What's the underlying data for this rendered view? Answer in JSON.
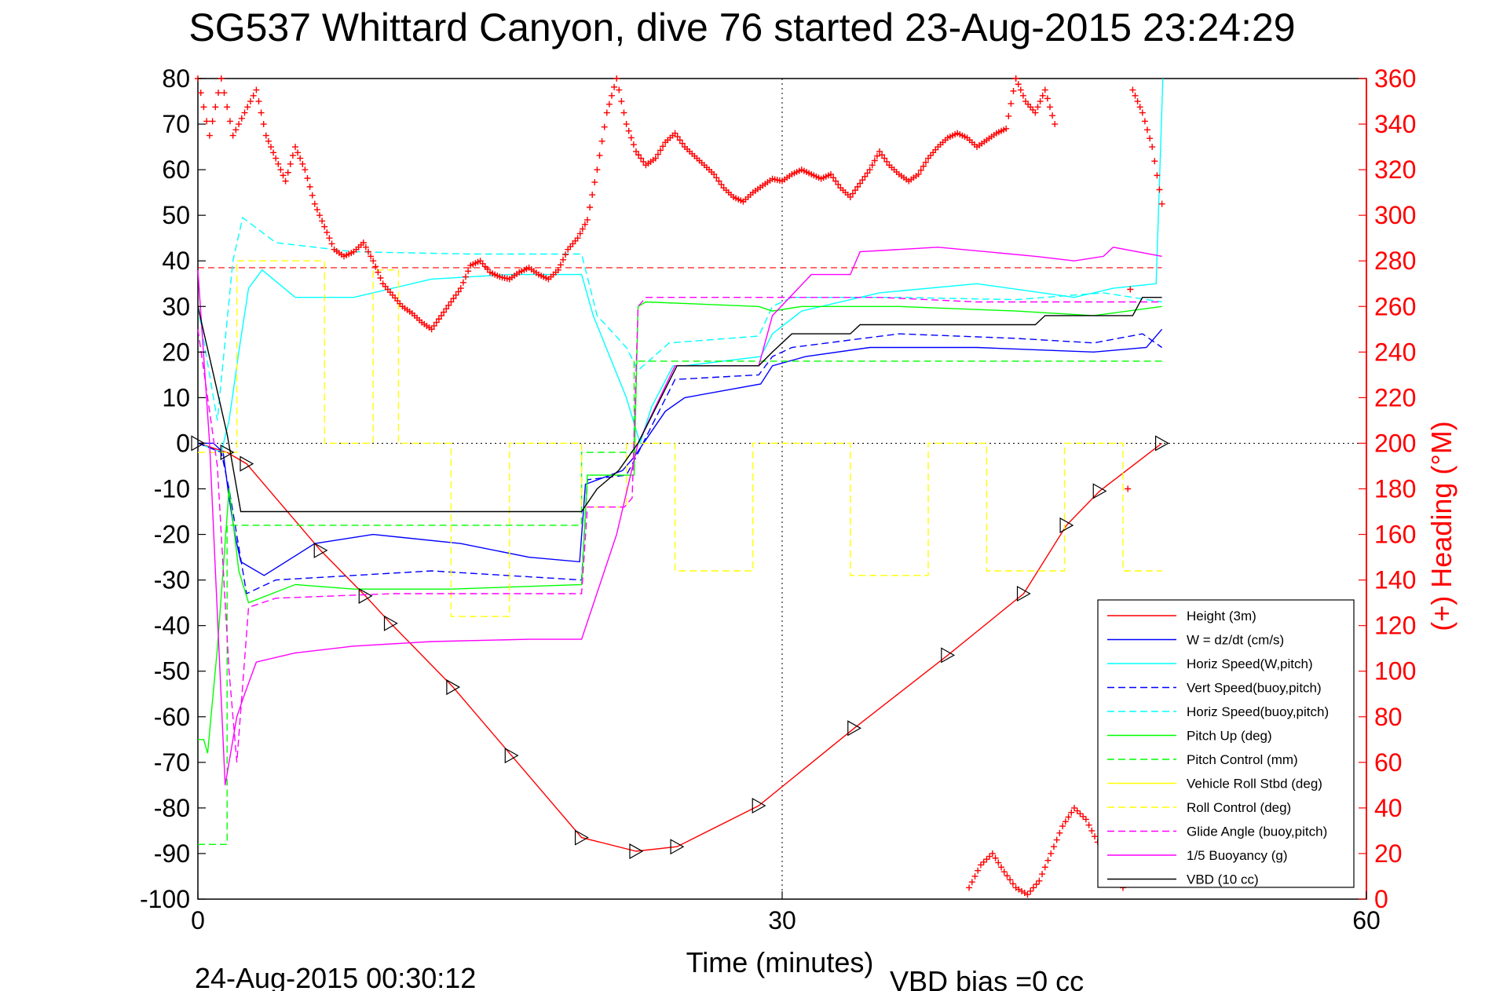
{
  "chart_data": {
    "type": "line",
    "title": "SG537 Whittard Canyon, dive 76 started 23-Aug-2015 23:24:29",
    "xlabel": "Time (minutes)",
    "ylabel_right": "(+) Heading (°M)",
    "footer_left": "24-Aug-2015 00:30:12",
    "footer_right": "VBD bias =0 cc",
    "xlim": [
      0,
      60
    ],
    "ylim": [
      -100,
      80
    ],
    "ylim_right": [
      0,
      360
    ],
    "xticks": [
      "0",
      "30",
      "60"
    ],
    "yticks": [
      "80",
      "70",
      "60",
      "50",
      "40",
      "30",
      "20",
      "10",
      "0",
      "-10",
      "-20",
      "-30",
      "-40",
      "-50",
      "-60",
      "-70",
      "-80",
      "-90",
      "-100"
    ],
    "yticks_right": [
      "360",
      "340",
      "320",
      "300",
      "280",
      "260",
      "240",
      "220",
      "200",
      "180",
      "160",
      "140",
      "120",
      "100",
      "80",
      "60",
      "40",
      "20",
      "0"
    ],
    "grid": "dotted, at x=30 and y=0",
    "legend_position": "lower-right",
    "heading_reference_line": 277,
    "series": [
      {
        "name": "Height (3m)",
        "color": "#ff0000",
        "dash": "solid",
        "x": [
          0,
          1.5,
          2.5,
          6.3,
          8.6,
          9.9,
          13.1,
          16.1,
          19.7,
          22.5,
          24.6,
          28.8,
          33.7,
          38.5,
          42.4,
          44.6,
          46.3,
          49.5
        ],
        "y": [
          0,
          -2,
          -4.5,
          -23.5,
          -33.5,
          -39.5,
          -53.5,
          -68.5,
          -86.5,
          -89.5,
          -88.5,
          -79.5,
          -62.5,
          -46.5,
          -33,
          -18,
          -10.5,
          0
        ]
      },
      {
        "name": "W = dz/dt (cm/s)",
        "color": "#0000ff",
        "dash": "solid",
        "x": [
          0,
          0.8,
          1.3,
          1.6,
          1.9,
          2.2,
          3.4,
          6.0,
          9.0,
          13.5,
          17.0,
          19.6,
          19.9,
          21.8,
          22.4,
          24.0,
          25.0,
          28.9,
          29.5,
          31.2,
          34.5,
          40.0,
          46.0,
          48.7,
          49.5
        ],
        "y": [
          0,
          0,
          -2,
          -12,
          -20,
          -26,
          -29,
          -22,
          -20,
          -22,
          -25,
          -26,
          -9,
          -6,
          -3,
          7,
          10,
          13,
          17,
          19,
          21,
          21,
          20,
          21,
          25
        ]
      },
      {
        "name": "Horiz Speed(W,pitch)",
        "color": "#00ffff",
        "dash": "solid",
        "x": [
          0,
          1.2,
          1.6,
          2.1,
          2.6,
          3.3,
          5.0,
          8.0,
          12.0,
          16.0,
          19.7,
          20.3,
          22.0,
          22.7,
          23.3,
          24.4,
          25.0,
          28.9,
          29.5,
          31.0,
          35.0,
          40.0,
          45.0,
          47.0,
          49.2,
          49.55
        ],
        "y": [
          0,
          -2,
          5,
          20,
          34,
          38,
          32,
          32,
          36,
          37,
          37,
          28,
          10,
          0,
          8,
          17,
          17,
          19,
          24,
          29,
          33,
          35,
          32,
          34,
          35,
          80
        ]
      },
      {
        "name": "Vert Speed(buoy,pitch)",
        "color": "#0000ff",
        "dash": "dashed",
        "x": [
          0,
          1.2,
          1.6,
          2.5,
          4.0,
          12.0,
          19.7,
          20.0,
          22.0,
          22.5,
          24.5,
          28.8,
          29.5,
          30.5,
          36.0,
          42.0,
          46.0,
          48.5,
          49.5
        ],
        "y": [
          0,
          -2,
          -10,
          -33,
          -30,
          -28,
          -30,
          -8,
          -7,
          -3,
          14,
          15,
          19,
          21,
          24,
          23,
          22,
          24,
          21
        ]
      },
      {
        "name": "Horiz Speed(buoy,pitch)",
        "color": "#00ffff",
        "dash": "dashed",
        "x": [
          0,
          1.0,
          1.8,
          2.3,
          4.0,
          8.0,
          14.0,
          19.7,
          20.5,
          22.0,
          22.6,
          24.2,
          28.8,
          29.5,
          30.5,
          36.0,
          42.0,
          46.5,
          49.5
        ],
        "y": [
          30,
          5,
          40,
          49.5,
          44,
          42,
          41.5,
          41.5,
          28,
          21,
          16,
          22,
          23.5,
          30,
          32,
          32,
          31.5,
          33,
          31
        ]
      },
      {
        "name": "Pitch Up (deg)",
        "color": "#00ff00",
        "dash": "solid",
        "x": [
          0,
          0.3,
          0.5,
          1.0,
          1.6,
          2.1,
          2.6,
          5.0,
          8.0,
          13.0,
          19.7,
          20.0,
          22.4,
          22.6,
          23.0,
          28.8,
          29.5,
          31.0,
          36.0,
          42.0,
          46.0,
          49.5
        ],
        "y": [
          -65,
          -65,
          -68,
          -45,
          -10,
          -28,
          -35,
          -31,
          -32,
          -32,
          -31,
          -7,
          -7,
          30,
          31,
          30,
          29,
          30,
          30,
          29,
          28,
          30
        ]
      },
      {
        "name": "Pitch Control (mm)",
        "color": "#00ff00",
        "dash": "dashed",
        "x": [
          0,
          1.5,
          1.5,
          19.7,
          19.7,
          22.4,
          22.4,
          25.0,
          25.0,
          49.5
        ],
        "y": [
          -88,
          -88,
          -18,
          -18,
          -2,
          -2,
          18,
          18,
          18,
          18
        ]
      },
      {
        "name": "Vehicle Roll Stbd (deg)",
        "color": "#ffff00",
        "dash": "solid",
        "x": [],
        "y": []
      },
      {
        "name": "Roll Control (deg)",
        "color": "#ffff00",
        "dash": "dashed",
        "x": [
          0,
          2.0,
          2.0,
          6.5,
          6.5,
          9.0,
          9.0,
          10.3,
          10.3,
          13.0,
          13.0,
          16.0,
          16.0,
          19.7,
          19.7,
          22.0,
          22.0,
          24.5,
          24.5,
          28.5,
          28.5,
          33.5,
          33.5,
          37.5,
          37.5,
          40.5,
          40.5,
          44.5,
          44.5,
          47.5,
          47.5,
          49.5
        ],
        "y": [
          -2,
          -2,
          40,
          40,
          0,
          0,
          38,
          38,
          0,
          0,
          -38,
          -38,
          0,
          0,
          -14,
          -14,
          0,
          0,
          -28,
          -28,
          0,
          0,
          -29,
          -29,
          0,
          0,
          -28,
          -28,
          0,
          0,
          -28,
          -28
        ]
      },
      {
        "name": "Glide Angle (buoy,pitch)",
        "color": "#ff00ff",
        "dash": "dashed",
        "x": [
          0,
          1.0,
          1.6,
          2.0,
          2.6,
          4.0,
          10.0,
          19.7,
          20.0,
          21.9,
          22.3,
          22.6,
          23.0,
          28.8,
          35.0,
          40.0,
          45.0,
          49.5
        ],
        "y": [
          25,
          -5,
          -50,
          -70,
          -36,
          -34,
          -33,
          -33,
          -14,
          -14,
          -12,
          30,
          32,
          32,
          32,
          31,
          31,
          31
        ]
      },
      {
        "name": "1/5 Buoyancy (g)",
        "color": "#ff00ff",
        "dash": "solid",
        "x": [
          0,
          0.6,
          1.4,
          2.0,
          2.4,
          3.0,
          5.0,
          8.0,
          12.0,
          17.0,
          19.7,
          21.5,
          22.6,
          24.5,
          28.8,
          29.5,
          31.5,
          33.5,
          34.0,
          38.0,
          43.0,
          45.0,
          46.5,
          47.0,
          49.5
        ],
        "y": [
          38,
          0,
          -75,
          -60,
          -55,
          -48,
          -46,
          -44.5,
          -43.5,
          -43,
          -43,
          -20,
          0,
          17,
          17,
          28,
          37,
          37,
          42,
          43,
          41,
          40,
          41,
          43,
          41
        ]
      },
      {
        "name": "VBD (10 cc)",
        "color": "#000000",
        "dash": "solid",
        "x": [
          0,
          1.5,
          2.2,
          19.7,
          20.5,
          21.6,
          22.6,
          24.6,
          28.8,
          29.5,
          30.5,
          33.5,
          34.0,
          43.0,
          43.5,
          48.0,
          48.5,
          49.5
        ],
        "y": [
          30,
          2,
          -15,
          -15,
          -10,
          -6,
          0,
          17,
          17,
          20,
          24,
          24,
          26,
          26,
          28,
          28,
          32,
          32
        ]
      }
    ],
    "heading_series": {
      "name": "(+) Heading",
      "color": "#ff0000",
      "marker": "+",
      "x": [
        0,
        0.6,
        1.2,
        1.8,
        2.4,
        3.0,
        3.5,
        4.0,
        4.5,
        5.0,
        5.5,
        6.0,
        6.5,
        7.0,
        7.5,
        8.0,
        8.5,
        9.0,
        9.5,
        10.0,
        10.5,
        11.0,
        11.5,
        12.0,
        12.5,
        13.0,
        13.5,
        14.0,
        14.5,
        15.0,
        15.5,
        16.0,
        16.5,
        17.0,
        17.5,
        18.0,
        18.5,
        19.0,
        19.5,
        20.0,
        20.5,
        21.0,
        21.5,
        22.0,
        22.5,
        23.0,
        23.5,
        24.0,
        24.5,
        25.0,
        25.5,
        26.0,
        26.5,
        27.0,
        27.5,
        28.0,
        28.5,
        29.0,
        29.5,
        30.0,
        30.5,
        31.0,
        31.5,
        32.0,
        32.5,
        33.0,
        33.5,
        34.0,
        34.5,
        35.0,
        35.5,
        36.0,
        36.5,
        37.0,
        37.5,
        38.0,
        38.5,
        39.0,
        39.5,
        40.0,
        40.5,
        41.0,
        41.5,
        42.0
      ],
      "y": [
        360,
        335,
        360,
        335,
        345,
        355,
        335,
        325,
        315,
        330,
        320,
        305,
        295,
        285,
        282,
        284,
        288,
        280,
        270,
        265,
        260,
        257,
        253,
        250,
        256,
        262,
        268,
        278,
        280,
        275,
        273,
        272,
        275,
        277,
        274,
        272,
        276,
        285,
        290,
        298,
        320,
        345,
        360,
        340,
        328,
        322,
        325,
        332,
        336,
        330,
        326,
        322,
        318,
        312,
        308,
        306,
        310,
        313,
        316,
        315,
        318,
        320,
        318,
        316,
        318,
        312,
        308,
        314,
        320,
        328,
        322,
        318,
        315,
        318,
        325,
        330,
        334,
        336,
        334,
        330,
        333,
        336,
        338,
        360
      ]
    },
    "heading_series_late": {
      "x": [
        42.0,
        42.5,
        43.0,
        43.5,
        44.0,
        44.5,
        45.0,
        45.5,
        46.0,
        46.5,
        47.0,
        47.5,
        48.0,
        48.5,
        49.0,
        49.5
      ],
      "y": [
        360,
        350,
        345,
        355,
        340,
        15,
        10,
        0,
        45,
        35,
        20,
        5,
        355,
        345,
        330,
        305
      ]
    },
    "heading_series_tail": {
      "x": [
        39.6,
        40.2,
        40.8,
        41.4,
        42.0,
        42.6,
        43.2,
        43.8,
        44.4,
        45.0,
        45.6,
        46.2
      ],
      "y": [
        5,
        15,
        20,
        12,
        5,
        2,
        8,
        20,
        32,
        40,
        35,
        25
      ]
    }
  }
}
